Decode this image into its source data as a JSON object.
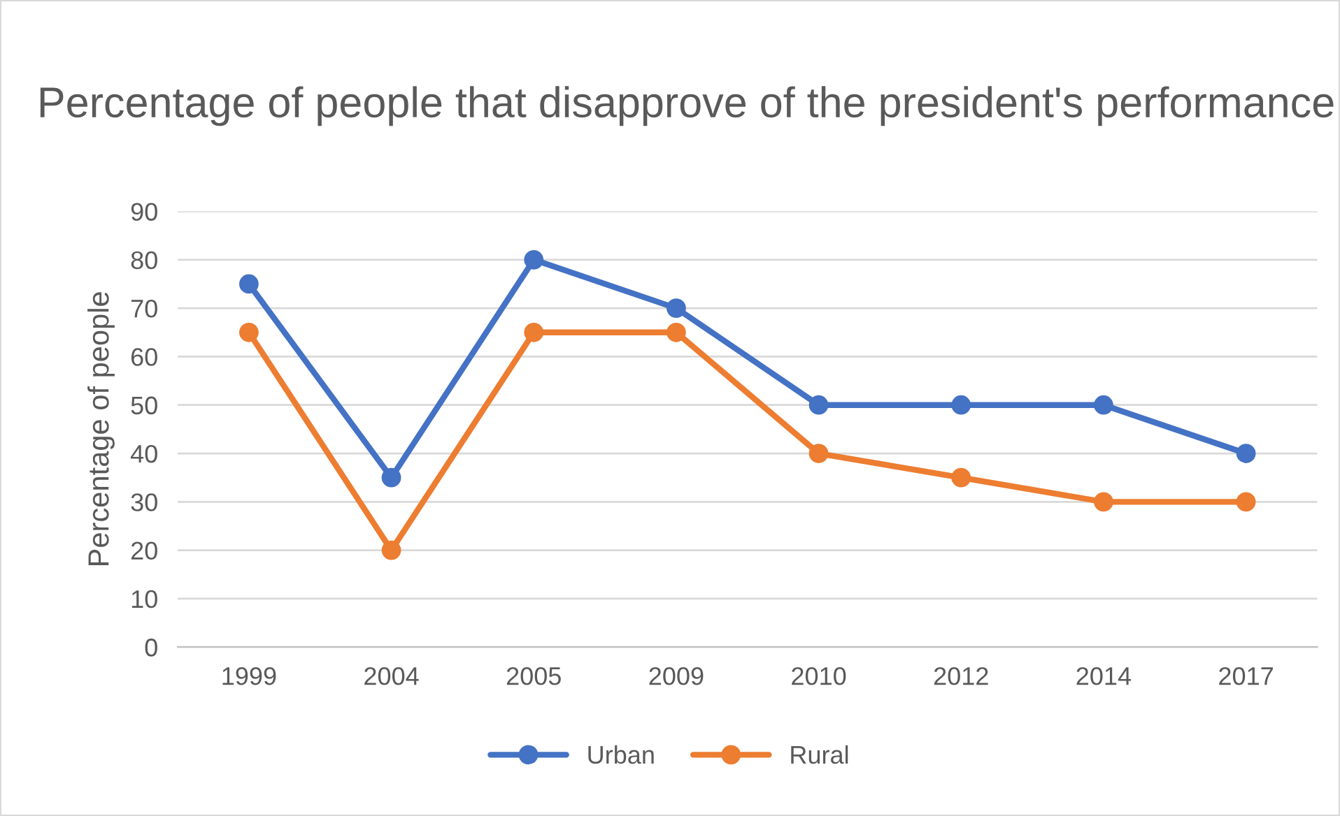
{
  "chart_data": {
    "type": "line",
    "title": "Percentage of people that disapprove of the president's performance",
    "ylabel": "Percentage of people",
    "categories": [
      "1999",
      "2004",
      "2005",
      "2009",
      "2010",
      "2012",
      "2014",
      "2017"
    ],
    "series": [
      {
        "name": "Urban",
        "color": "#4472c4",
        "values": [
          75,
          35,
          80,
          70,
          50,
          50,
          50,
          40
        ]
      },
      {
        "name": "Rural",
        "color": "#ed7d31",
        "values": [
          65,
          20,
          65,
          65,
          40,
          35,
          30,
          30
        ]
      }
    ],
    "ylim": [
      0,
      90
    ],
    "yticks": [
      0,
      10,
      20,
      30,
      40,
      50,
      60,
      70,
      80,
      90
    ],
    "grid": "y",
    "legend": "bottom",
    "marker": "circle",
    "line_style": "solid"
  }
}
